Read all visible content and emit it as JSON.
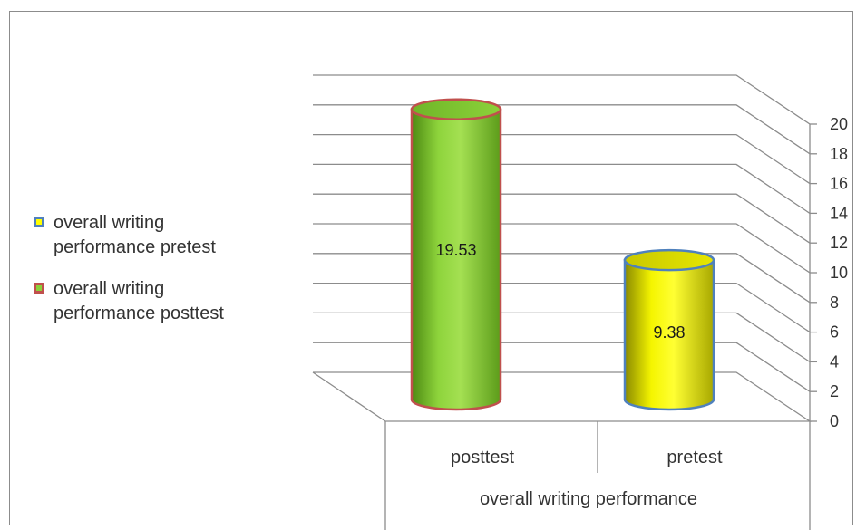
{
  "chart_data": {
    "type": "bar",
    "style": "3d-cylinder",
    "categories": [
      "posttest",
      "pretest"
    ],
    "series": [
      {
        "name": "overall writing performance posttest",
        "values": [
          19.53,
          null
        ],
        "fill": "#8cd13a",
        "border": "#c0504d",
        "label": "19.53"
      },
      {
        "name": "overall writing performance pretest",
        "values": [
          null,
          9.38
        ],
        "fill": "#ffff00",
        "border": "#4f81bd",
        "label": "9.38"
      }
    ],
    "xlabel": "overall writing performance",
    "ylabel": "",
    "title": "",
    "ylim": [
      0,
      20
    ],
    "yticks": [
      "0",
      "2",
      "4",
      "6",
      "8",
      "10",
      "12",
      "14",
      "16",
      "18",
      "20"
    ],
    "grid": true,
    "legend_position": "left"
  },
  "legend": {
    "items": [
      {
        "line1": "overall writing",
        "line2": "performance pretest",
        "swatch_fill": "#ffff00",
        "swatch_border": "#4f81bd"
      },
      {
        "line1": "overall writing",
        "line2": "performance posttest",
        "swatch_fill": "#8cd13a",
        "swatch_border": "#c0504d"
      }
    ]
  }
}
